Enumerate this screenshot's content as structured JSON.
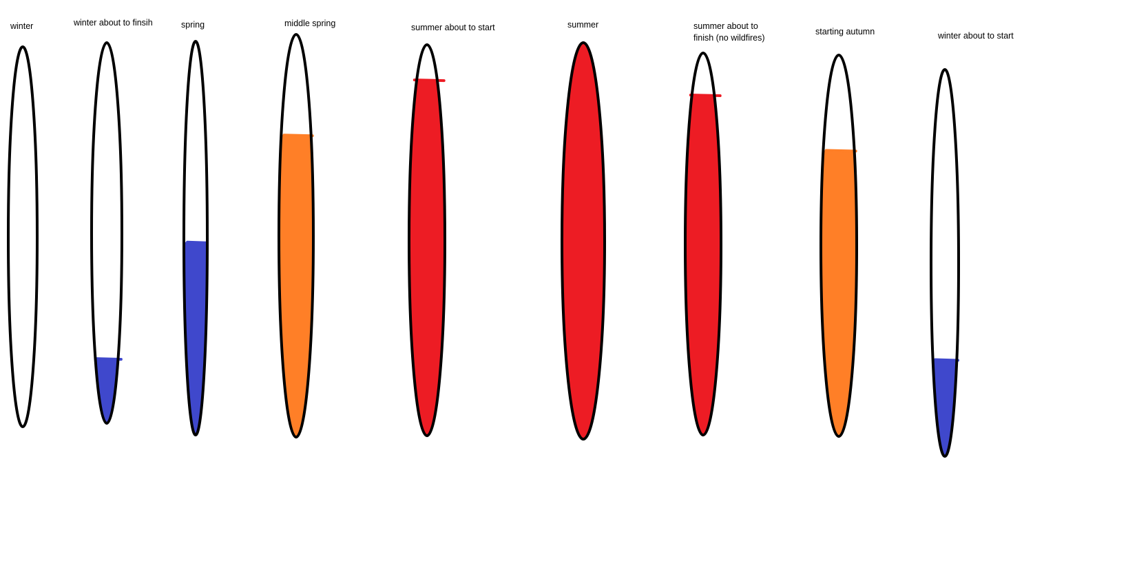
{
  "colors": {
    "outline": "#000000",
    "cold": "#3f48cc",
    "warm": "#ff7f27",
    "hot": "#ed1c24"
  },
  "gauges": [
    {
      "label": [
        "winter"
      ],
      "fill_level": 0,
      "fill_color": "none"
    },
    {
      "label": [
        "winter about to finsih"
      ],
      "fill_level": 0.17,
      "fill_color": "#3f48cc"
    },
    {
      "label": [
        "spring"
      ],
      "fill_level": 0.49,
      "fill_color": "#3f48cc"
    },
    {
      "label": [
        "middle spring"
      ],
      "fill_level": 0.75,
      "fill_color": "#ff7f27"
    },
    {
      "label": [
        "summer about to start"
      ],
      "fill_level": 0.91,
      "fill_color": "#ed1c24"
    },
    {
      "label": [
        "summer"
      ],
      "fill_level": 1.0,
      "fill_color": "#ed1c24"
    },
    {
      "label": [
        "summer about to",
        "finish (no wildfires)"
      ],
      "fill_level": 0.89,
      "fill_color": "#ed1c24"
    },
    {
      "label": [
        "starting autumn"
      ],
      "fill_level": 0.75,
      "fill_color": "#ff7f27"
    },
    {
      "label": [
        "winter about to start"
      ],
      "fill_level": 0.25,
      "fill_color": "#3f48cc"
    }
  ]
}
